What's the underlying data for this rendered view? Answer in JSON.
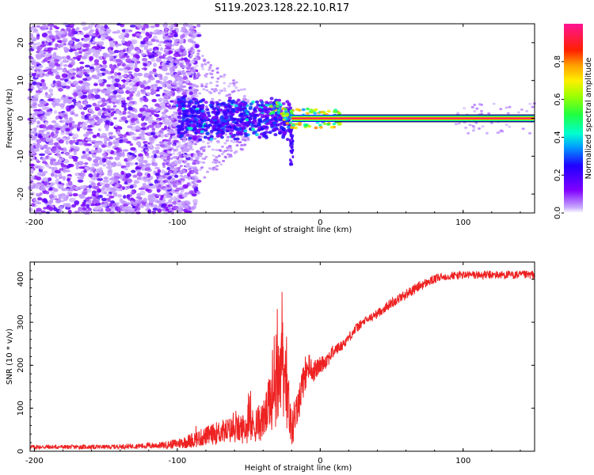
{
  "title": "S119.2023.128.22.10.R17",
  "chart_data": [
    {
      "type": "heatmap",
      "xlabel": "Height of straight line (km)",
      "ylabel": "Frequency (Hz)",
      "xlim": [
        -203,
        150
      ],
      "ylim": [
        -25,
        25
      ],
      "xticks": [
        -200,
        -100,
        0,
        100
      ],
      "yticks": [
        -20,
        -10,
        0,
        10,
        20
      ],
      "colorbar": {
        "label": "Normalized spectral amplitude",
        "range": [
          0,
          1
        ],
        "ticks": [
          0.0,
          0.2,
          0.4,
          0.6,
          0.8
        ],
        "colormap": "rainbow",
        "low_color": "#ffffff",
        "high_color": "#ff1493"
      },
      "features": {
        "scatter_region_x": [
          -203,
          -100
        ],
        "cluster_region_x": [
          -100,
          -20
        ],
        "signal_line_x": [
          -20,
          150
        ],
        "signal_line_y": 0
      }
    },
    {
      "type": "line",
      "xlabel": "Height of straight line (km)",
      "ylabel": "SNR (10 * v/v)",
      "xlim": [
        -203,
        150
      ],
      "ylim": [
        0,
        440
      ],
      "xticks": [
        -200,
        -100,
        0,
        100
      ],
      "yticks": [
        0,
        100,
        200,
        300,
        400
      ],
      "series": [
        {
          "color": "#ee2222",
          "x": [
            -203,
            -190,
            -170,
            -150,
            -130,
            -110,
            -100,
            -90,
            -80,
            -70,
            -60,
            -50,
            -40,
            -35,
            -30,
            -27,
            -25,
            -22,
            -20,
            -15,
            -12,
            -8,
            -5,
            0,
            5,
            10,
            15,
            20,
            25,
            30,
            40,
            50,
            60,
            70,
            80,
            85,
            90,
            100,
            110,
            120,
            130,
            140,
            150
          ],
          "values": [
            10,
            10,
            10,
            10,
            12,
            14,
            18,
            25,
            35,
            45,
            50,
            55,
            70,
            110,
            200,
            230,
            210,
            120,
            50,
            110,
            170,
            200,
            185,
            200,
            215,
            235,
            245,
            265,
            285,
            300,
            320,
            345,
            365,
            385,
            400,
            405,
            408,
            410,
            410,
            410,
            410,
            410,
            410
          ],
          "noise": [
            5,
            5,
            5,
            5,
            6,
            8,
            12,
            18,
            22,
            28,
            32,
            38,
            45,
            70,
            80,
            70,
            60,
            40,
            20,
            40,
            50,
            30,
            25,
            20,
            20,
            15,
            12,
            12,
            12,
            10,
            10,
            12,
            12,
            12,
            10,
            10,
            10,
            10,
            10,
            10,
            10,
            10,
            10
          ]
        }
      ]
    }
  ]
}
